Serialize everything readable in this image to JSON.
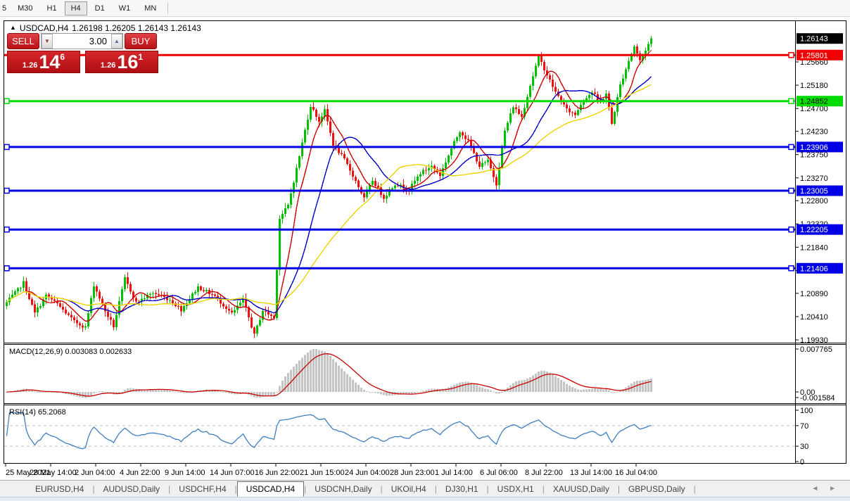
{
  "toolbar": {
    "periods": [
      "5",
      "M30",
      "H1",
      "H4",
      "D1",
      "W1",
      "MN"
    ],
    "active_period": "H4"
  },
  "title": {
    "symbol_timeframe": "USDCAD,H4",
    "ohlc_text": "1.26198 1.26205 1.26143 1.26143"
  },
  "trade": {
    "sell_label": "SELL",
    "buy_label": "BUY",
    "volume": "3.00",
    "sell_price": {
      "small": "1.26",
      "big": "14",
      "sup": "6"
    },
    "buy_price": {
      "small": "1.26",
      "big": "16",
      "sup": "1"
    }
  },
  "tabs": {
    "items": [
      "EURUSD,H4",
      "AUDUSD,Daily",
      "USDCHF,H4",
      "USDCAD,H4",
      "USDCNH,Daily",
      "UKOil,H4",
      "DJ30,H1",
      "USDX,H1",
      "XAUUSD,Daily",
      "GBPUSD,Daily"
    ],
    "active": "USDCAD,H4",
    "arrows": "◄ ►"
  },
  "colors": {
    "bull": "#00C000",
    "bear": "#F01010",
    "ma_fast": "#D00000",
    "ma_mid": "#0000C8",
    "ma_slow": "#EDD500",
    "hline_red": "#F00000",
    "hline_green": "#00DC00",
    "hline_blue": "#0000E6",
    "macd_hist": "#C4C4C4",
    "macd_signal": "#CC0000",
    "rsi_line": "#3E7FC1",
    "badge_black": "#000000"
  },
  "chart_data": {
    "type": "candlestick",
    "symbol": "USDCAD",
    "timeframe": "H4",
    "bars_total": 230,
    "current_price": "1.26143",
    "price_anchors_bar_close": [
      [
        0,
        1.207
      ],
      [
        4,
        1.2096
      ],
      [
        6,
        1.2111
      ],
      [
        10,
        1.20481
      ],
      [
        14,
        1.20844
      ],
      [
        18,
        1.2067
      ],
      [
        24,
        1.20307
      ],
      [
        28,
        1.20191
      ],
      [
        31,
        1.21062
      ],
      [
        35,
        1.20525
      ],
      [
        38,
        1.20206
      ],
      [
        42,
        1.21192
      ],
      [
        46,
        1.207
      ],
      [
        52,
        1.20902
      ],
      [
        58,
        1.20757
      ],
      [
        62,
        1.20554
      ],
      [
        68,
        1.21018
      ],
      [
        74,
        1.2083
      ],
      [
        80,
        1.20467
      ],
      [
        84,
        1.20757
      ],
      [
        88,
        1.20032
      ],
      [
        91,
        1.20539
      ],
      [
        95,
        1.2038
      ],
      [
        97,
        1.2244
      ],
      [
        100,
        1.22701
      ],
      [
        103,
        1.23455
      ],
      [
        106,
        1.24253
      ],
      [
        108,
        1.24761
      ],
      [
        111,
        1.24441
      ],
      [
        113,
        1.24659
      ],
      [
        116,
        1.23963
      ],
      [
        120,
        1.23644
      ],
      [
        124,
        1.23209
      ],
      [
        127,
        1.22846
      ],
      [
        130,
        1.23223
      ],
      [
        134,
        1.2286
      ],
      [
        138,
        1.2315
      ],
      [
        143,
        1.23034
      ],
      [
        147,
        1.23368
      ],
      [
        151,
        1.23513
      ],
      [
        154,
        1.23325
      ],
      [
        158,
        1.23876
      ],
      [
        161,
        1.24238
      ],
      [
        164,
        1.24021
      ],
      [
        168,
        1.23513
      ],
      [
        171,
        1.23615
      ],
      [
        174,
        1.2315
      ],
      [
        177,
        1.24238
      ],
      [
        180,
        1.24746
      ],
      [
        183,
        1.24529
      ],
      [
        186,
        1.25181
      ],
      [
        189,
        1.25762
      ],
      [
        192,
        1.25399
      ],
      [
        195,
        1.25036
      ],
      [
        199,
        1.24674
      ],
      [
        202,
        1.24572
      ],
      [
        205,
        1.24891
      ],
      [
        208,
        1.25036
      ],
      [
        211,
        1.24819
      ],
      [
        213,
        1.25007
      ],
      [
        215,
        1.24384
      ],
      [
        218,
        1.25181
      ],
      [
        221,
        1.25689
      ],
      [
        223,
        1.25979
      ],
      [
        225,
        1.25689
      ],
      [
        227,
        1.25907
      ],
      [
        229,
        1.26143
      ]
    ],
    "price_axis_ticks": [
      "1.25660",
      "1.25180",
      "1.24700",
      "1.24230",
      "1.23750",
      "1.23270",
      "1.22800",
      "1.22320",
      "1.21840",
      "1.21360",
      "1.20890",
      "1.20410",
      "1.19930"
    ],
    "horizontal_lines": [
      {
        "price": "1.25801",
        "color_key": "hline_red",
        "badge_fg": "#FFFFFF",
        "left_handle": false
      },
      {
        "price": "1.24852",
        "color_key": "hline_green",
        "badge_fg": "#000000",
        "left_handle": true
      },
      {
        "price": "1.23906",
        "color_key": "hline_blue",
        "badge_fg": "#FFFFFF",
        "left_handle": true
      },
      {
        "price": "1.23005",
        "color_key": "hline_blue",
        "badge_fg": "#FFFFFF",
        "left_handle": true
      },
      {
        "price": "1.22205",
        "color_key": "hline_blue",
        "badge_fg": "#FFFFFF",
        "left_handle": true
      },
      {
        "price": "1.21406",
        "color_key": "hline_blue",
        "badge_fg": "#FFFFFF",
        "left_handle": true
      }
    ],
    "moving_averages": [
      {
        "name": "fast",
        "period": 8,
        "color_key": "ma_fast"
      },
      {
        "name": "mid",
        "period": 20,
        "color_key": "ma_mid"
      },
      {
        "name": "slow",
        "period": 44,
        "color_key": "ma_slow"
      }
    ],
    "time_axis_labels": [
      "25 May 2021",
      "28 May 14:00",
      "2 Jun 04:00",
      "4 Jun 22:00",
      "9 Jun 14:00",
      "14 Jun 07:00",
      "16 Jun 22:00",
      "21 Jun 15:00",
      "24 Jun 04:00",
      "28 Jun 23:00",
      "1 Jul 14:00",
      "6 Jul 06:00",
      "8 Jul 22:00",
      "13 Jul 14:00",
      "16 Jul 04:00"
    ],
    "macd": {
      "label": "MACD(12,26,9) 0.003083 0.002633",
      "params": [
        12,
        26,
        9
      ],
      "displayed_values": [
        "0.003083",
        "0.002633"
      ],
      "axis_labels": [
        "0.007765",
        "0.00",
        "-0.001584"
      ]
    },
    "rsi": {
      "label": "RSI(14) 65.2068",
      "period": 14,
      "displayed_value": "65.2068",
      "axis_labels": [
        "100",
        "70",
        "30",
        "0"
      ],
      "levels": [
        70,
        30
      ]
    }
  }
}
